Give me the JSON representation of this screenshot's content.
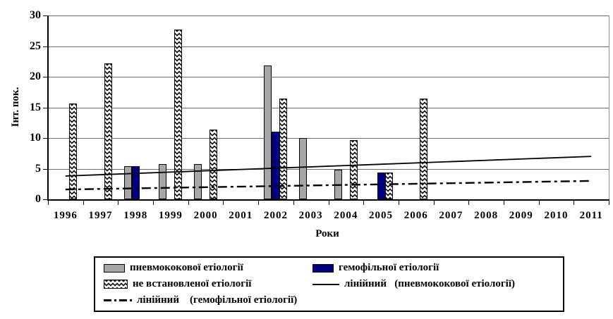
{
  "chart_data": {
    "type": "bar",
    "title": "",
    "xlabel": "Роки",
    "ylabel": "Інт. пок.",
    "ylim": [
      0,
      30
    ],
    "yticks": [
      0,
      5,
      10,
      15,
      20,
      25,
      30
    ],
    "grid": true,
    "legend_position": "bottom",
    "categories": [
      "1996",
      "1997",
      "1998",
      "1999",
      "2000",
      "2001",
      "2002",
      "2003",
      "2004",
      "2005",
      "2006",
      "2007",
      "2008",
      "2009",
      "2010",
      "2011"
    ],
    "series": [
      {
        "name": "пневмококової етіології",
        "style": "pneumo",
        "color": "#a6a6a6",
        "values": [
          null,
          null,
          5.4,
          5.7,
          5.7,
          null,
          21.8,
          10.0,
          4.8,
          null,
          null,
          null,
          null,
          null,
          null,
          null
        ]
      },
      {
        "name": "гемофільної етіології",
        "style": "hemo",
        "color": "#000080",
        "values": [
          null,
          null,
          5.4,
          null,
          null,
          null,
          11.0,
          null,
          null,
          4.4,
          null,
          null,
          null,
          null,
          null,
          null
        ]
      },
      {
        "name": "не встановленої етіології",
        "style": "unknown",
        "color": "#ffffff",
        "values": [
          15.6,
          22.2,
          null,
          27.7,
          11.4,
          null,
          16.4,
          null,
          9.6,
          4.4,
          16.4,
          null,
          null,
          null,
          null,
          null
        ]
      }
    ],
    "trendlines": [
      {
        "name": "лінійний   (пневмококової етіології)",
        "style": "solid",
        "x": [
          1996,
          2011
        ],
        "y": [
          3.8,
          7.0
        ]
      },
      {
        "name": "лінійний    (гемофільної етіології)",
        "style": "dashdot",
        "x": [
          1996,
          2011
        ],
        "y": [
          1.6,
          3.0
        ]
      }
    ]
  },
  "legend": {
    "items": [
      {
        "label": "пневмококової етіології",
        "swatch": "gray-box"
      },
      {
        "label": "гемофільної етіології",
        "swatch": "navy-box"
      },
      {
        "label": "не встановленої етіології",
        "swatch": "diamond-pattern-box"
      },
      {
        "label": "лінійний   (пневмококової етіології)",
        "swatch": "solid-line"
      },
      {
        "label": "лінійний    (гемофільної етіології)",
        "swatch": "dash-dot-line"
      }
    ]
  },
  "colors": {
    "bar_pneumo_gray": "#a6a6a6",
    "bar_hemo_navy": "#000080",
    "pattern_diamond": "#1c1c1c",
    "gridline": "#6b6b6b",
    "axis": "#000000",
    "background": "#ffffff"
  }
}
